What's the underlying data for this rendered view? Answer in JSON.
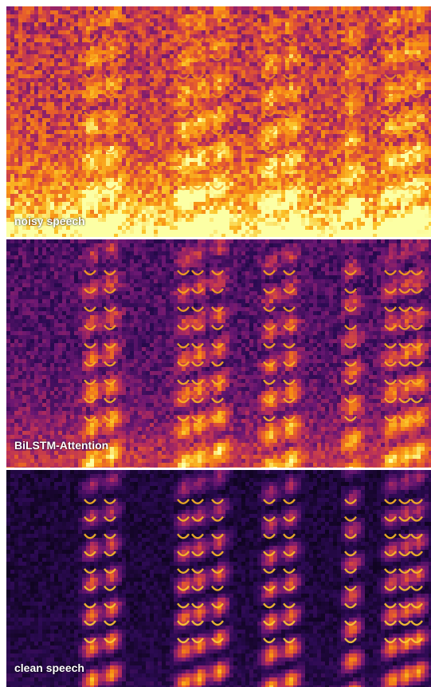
{
  "colormap": {
    "name": "inferno",
    "stops": [
      "#000004",
      "#2b0a52",
      "#6b1772",
      "#b62d5c",
      "#e4582f",
      "#f78d14",
      "#fbc42a",
      "#fcffa4"
    ]
  },
  "panels": [
    {
      "label": "noisy speech",
      "condition": "noisy",
      "background": "#5a1570"
    },
    {
      "label": "BiLSTM-Attention",
      "condition": "enhanced",
      "background": "#2c0c44"
    },
    {
      "label": "clean speech",
      "condition": "clean",
      "background": "#1a0a30"
    }
  ]
}
